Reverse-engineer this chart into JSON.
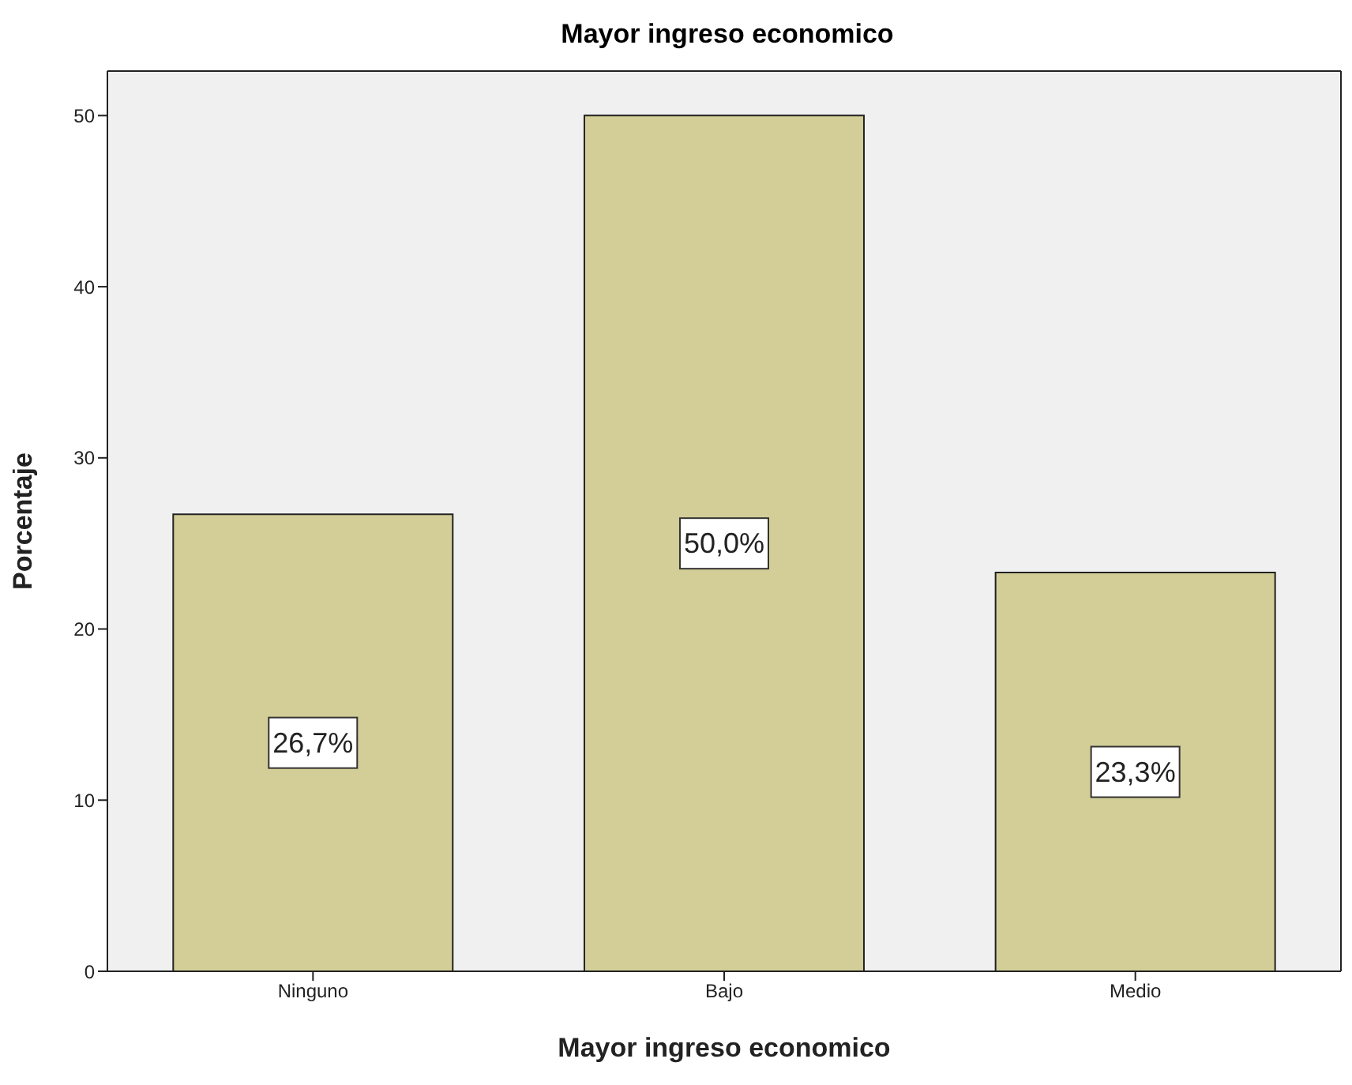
{
  "chart_data": {
    "type": "bar",
    "title": "Mayor ingreso economico",
    "xlabel": "Mayor ingreso economico",
    "ylabel": "Porcentaje",
    "categories": [
      "Ninguno",
      "Bajo",
      "Medio"
    ],
    "values": [
      26.7,
      50.0,
      23.3
    ],
    "value_labels": [
      "26,7%",
      "50,0%",
      "23,3%"
    ],
    "color": "#d3ce97",
    "ylim": [
      0,
      52.6
    ],
    "yticks": [
      0,
      10,
      20,
      30,
      40,
      50
    ],
    "grid": false
  }
}
